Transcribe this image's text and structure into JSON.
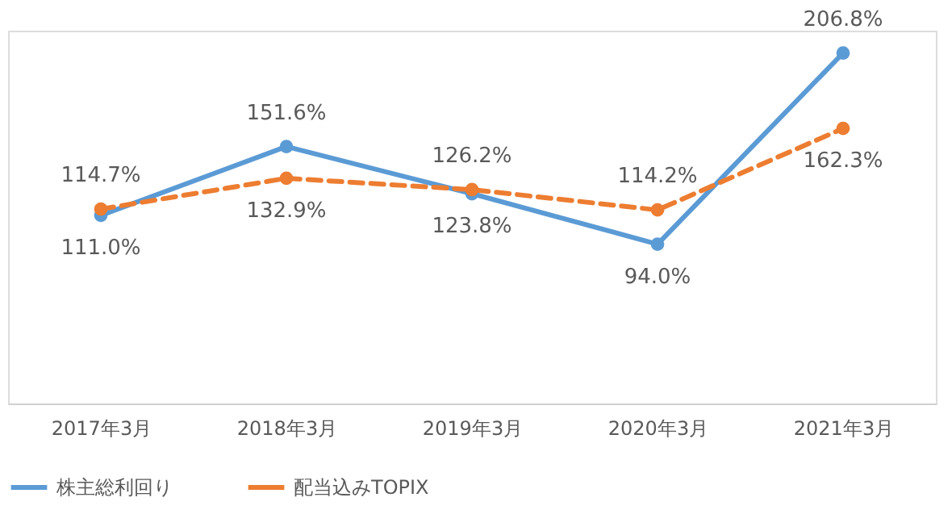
{
  "chart_data": {
    "type": "line",
    "categories": [
      "2017年3月",
      "2018年3月",
      "2019年3月",
      "2020年3月",
      "2021年3月"
    ],
    "series": [
      {
        "name": "株主総利回り",
        "color": "#5b9bd5",
        "values": [
          111.0,
          151.6,
          123.8,
          94.0,
          206.8
        ],
        "value_labels": [
          "111.0%",
          "151.6%",
          "123.8%",
          "94.0%",
          "206.8%"
        ],
        "line_style": "solid"
      },
      {
        "name": "配当込みTOPIX",
        "color": "#ed7d31",
        "values": [
          114.7,
          132.9,
          126.2,
          114.2,
          162.3
        ],
        "value_labels": [
          "114.7%",
          "132.9%",
          "126.2%",
          "114.2%",
          "162.3%"
        ],
        "line_style": "dashed"
      }
    ],
    "tick_labels": "x",
    "legend": "bottom",
    "marker": "circle"
  }
}
